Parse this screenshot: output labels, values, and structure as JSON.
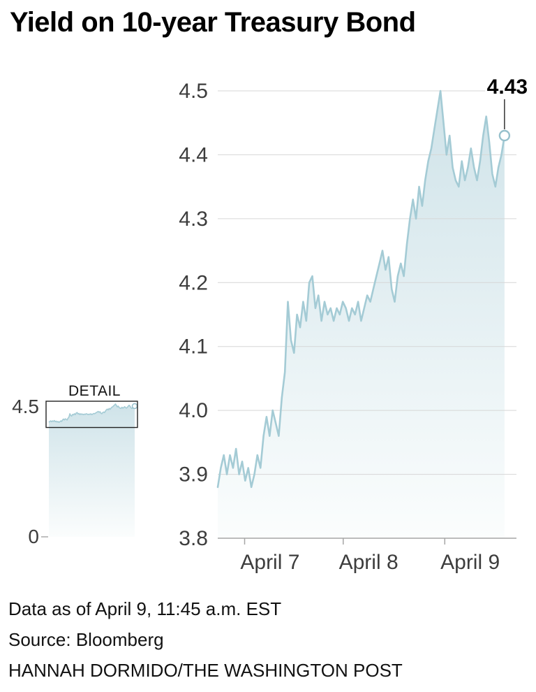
{
  "title": "Yield on 10-year Treasury Bond",
  "footer": {
    "line1": "Data as of April 9, 11:45 a.m. EST",
    "line2": "Source: Bloomberg",
    "line3": "HANNAH DORMIDO/THE WASHINGTON POST"
  },
  "chart_data": {
    "type": "area",
    "title": "Yield on 10-year Treasury Bond",
    "xlabel": "",
    "ylabel": "",
    "ylim": [
      3.8,
      4.5
    ],
    "yticks": [
      3.8,
      3.9,
      4.0,
      4.1,
      4.2,
      4.3,
      4.4,
      4.5
    ],
    "xticks": [
      {
        "label": "April 7",
        "pos": 0.09
      },
      {
        "label": "April 8",
        "pos": 0.42
      },
      {
        "label": "April 9",
        "pos": 0.76
      }
    ],
    "x_data_end": 0.96,
    "grid": true,
    "legend": false,
    "values": [
      3.88,
      3.91,
      3.93,
      3.9,
      3.93,
      3.91,
      3.94,
      3.9,
      3.92,
      3.89,
      3.91,
      3.88,
      3.9,
      3.93,
      3.91,
      3.96,
      3.99,
      3.96,
      4.0,
      3.98,
      3.96,
      4.02,
      4.06,
      4.17,
      4.11,
      4.09,
      4.15,
      4.13,
      4.17,
      4.14,
      4.2,
      4.21,
      4.16,
      4.18,
      4.14,
      4.17,
      4.15,
      4.16,
      4.14,
      4.16,
      4.15,
      4.17,
      4.16,
      4.14,
      4.16,
      4.15,
      4.17,
      4.14,
      4.16,
      4.18,
      4.17,
      4.19,
      4.21,
      4.23,
      4.25,
      4.22,
      4.24,
      4.19,
      4.17,
      4.21,
      4.23,
      4.21,
      4.26,
      4.3,
      4.33,
      4.3,
      4.35,
      4.32,
      4.36,
      4.39,
      4.41,
      4.44,
      4.47,
      4.5,
      4.45,
      4.4,
      4.43,
      4.38,
      4.36,
      4.35,
      4.39,
      4.36,
      4.38,
      4.41,
      4.38,
      4.36,
      4.39,
      4.43,
      4.46,
      4.42,
      4.37,
      4.35,
      4.38,
      4.4,
      4.43
    ],
    "end_value": 4.43,
    "end_label": "4.43",
    "colors": {
      "line": "#a4cbd5",
      "fill_top": "#cfe3e9",
      "fill_bottom": "#fbfdfd",
      "grid": "#d6d6d6",
      "axis": "#a6a6a6",
      "tick_text": "#3d3d3d",
      "marker_stroke": "#96c0cc",
      "annotation": "#000000"
    },
    "detail_inset": {
      "label": "DETAIL",
      "ylim": [
        0,
        4.5
      ],
      "ytick_top": "4.5",
      "ytick_bottom": "0",
      "box_ylim": [
        3.8,
        4.5
      ]
    }
  }
}
